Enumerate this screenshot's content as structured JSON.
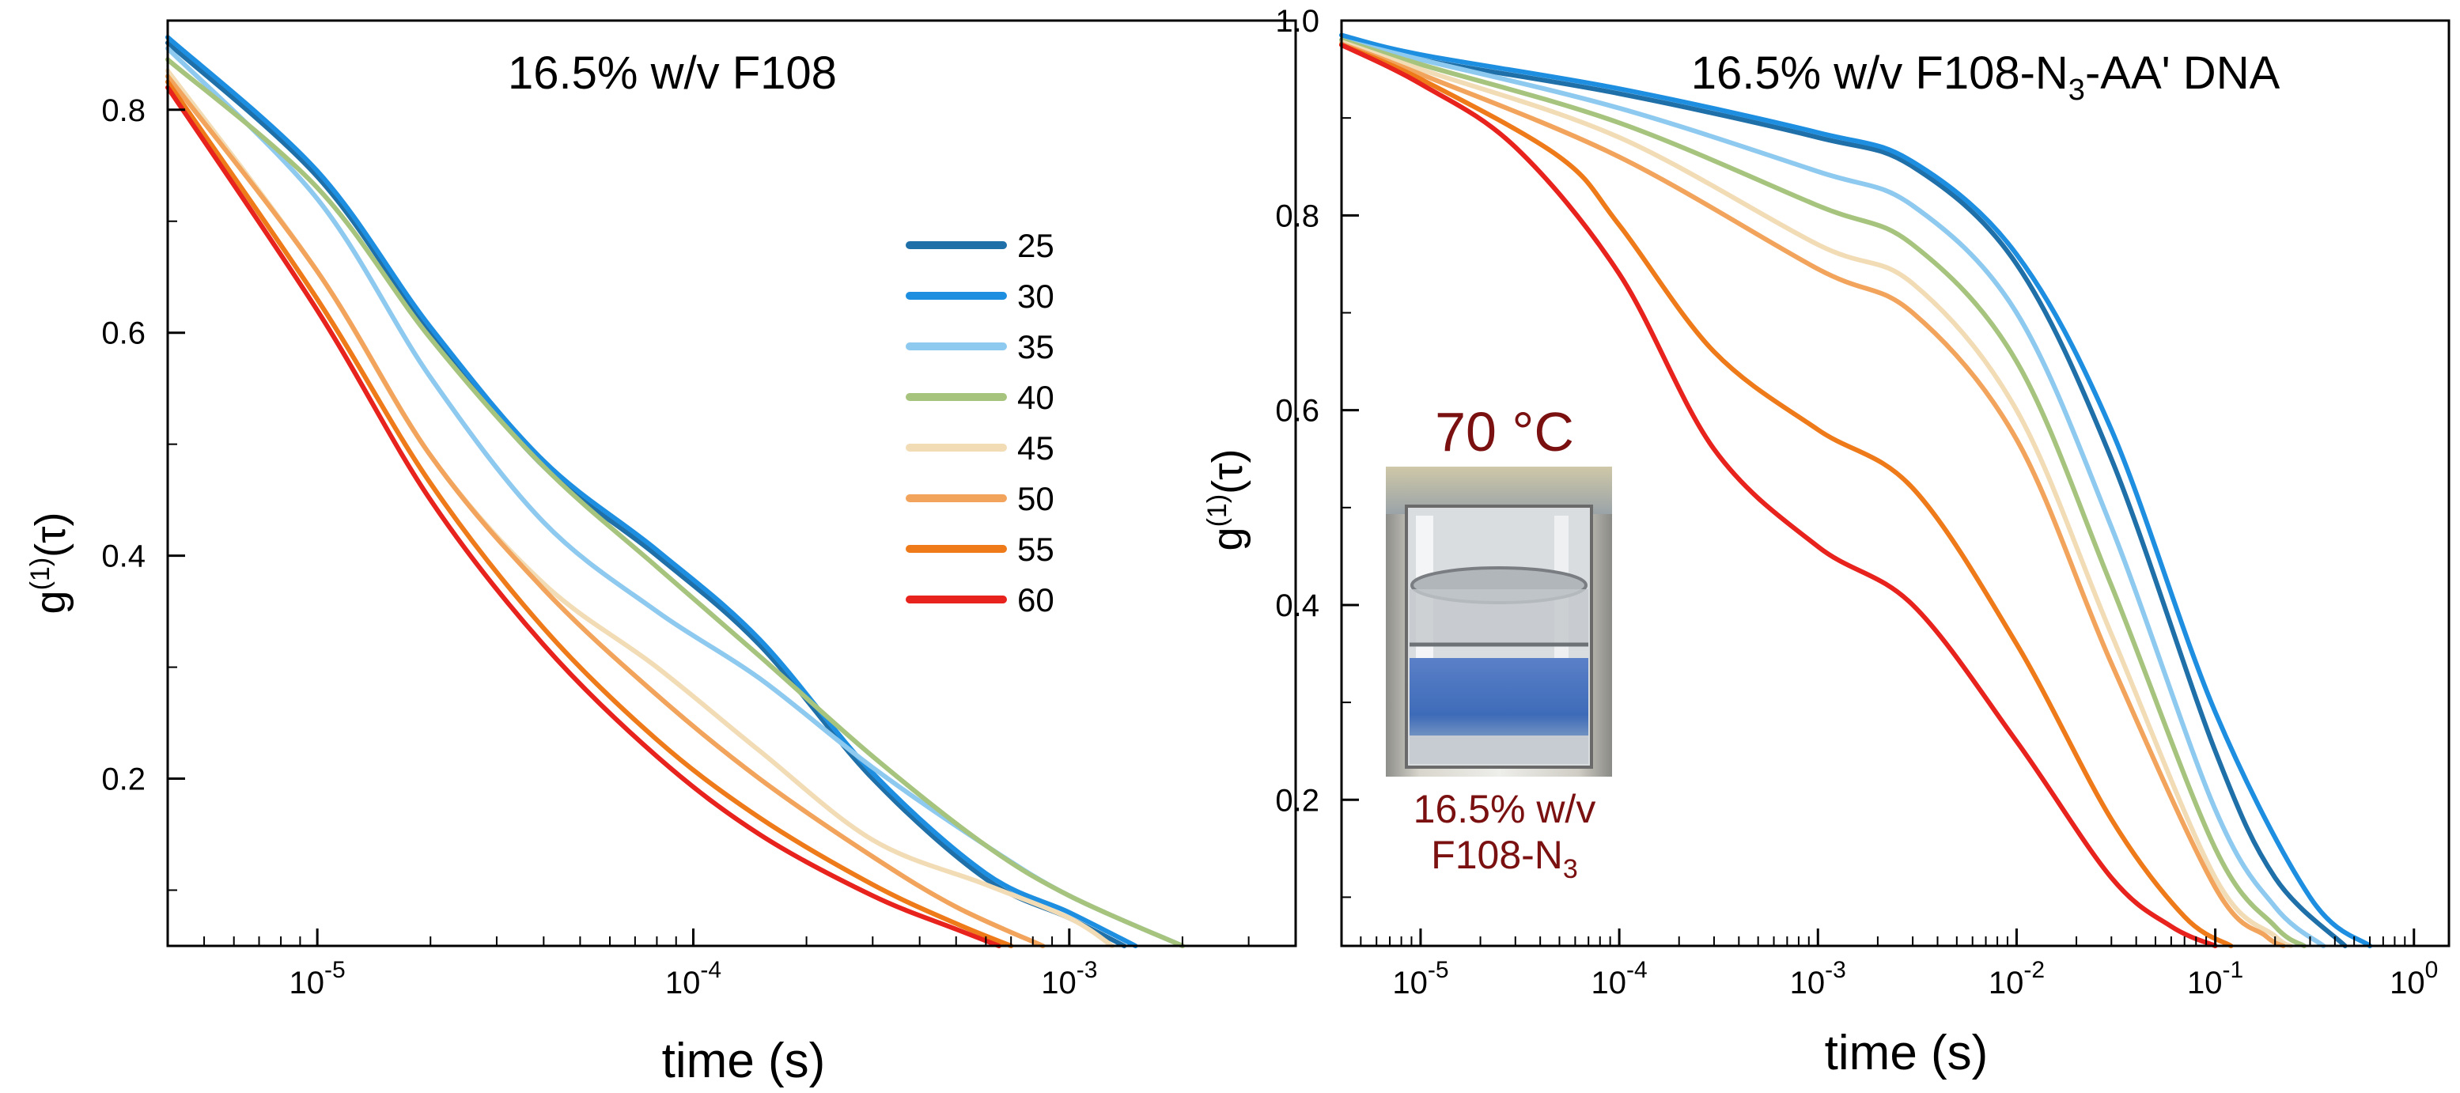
{
  "colors": {
    "25": "#1f6fa8",
    "30": "#1e8fe0",
    "35": "#8ec9ef",
    "40": "#a6c47e",
    "45": "#f2dcb6",
    "50": "#f2a45c",
    "55": "#ee7a1a",
    "60": "#e8221c",
    "45_left_tail": "#b3b3b3",
    "inset_text": "#7a1010"
  },
  "chart_data": [
    {
      "type": "line",
      "title": "16.5% w/v F108",
      "xlabel": "time (s)",
      "ylabel_main": "g",
      "ylabel_super": "(1)",
      "ylabel_arg": "(τ)",
      "xscale": "log",
      "xlim": [
        4e-06,
        0.004
      ],
      "ylim": [
        0.05,
        0.88
      ],
      "x_tick_labels": [
        {
          "base": "10",
          "exp": "-5",
          "value": 1e-05
        },
        {
          "base": "10",
          "exp": "-4",
          "value": 0.0001
        },
        {
          "base": "10",
          "exp": "-3",
          "value": 0.001
        }
      ],
      "y_ticks": [
        {
          "label": "0.2",
          "value": 0.2
        },
        {
          "label": "0.4",
          "value": 0.4
        },
        {
          "label": "0.6",
          "value": 0.6
        },
        {
          "label": "0.8",
          "value": 0.8
        }
      ],
      "legend": {
        "placement": "center-right",
        "entries": [
          {
            "label": "25",
            "key": "25"
          },
          {
            "label": "30",
            "key": "30"
          },
          {
            "label": "35",
            "key": "35"
          },
          {
            "label": "40",
            "key": "40"
          },
          {
            "label": "45",
            "key": "45"
          },
          {
            "label": "50",
            "key": "50"
          },
          {
            "label": "55",
            "key": "55"
          },
          {
            "label": "60",
            "key": "60"
          }
        ]
      },
      "series": [
        {
          "name": "25",
          "key": "25",
          "points": [
            [
              4e-06,
              0.86
            ],
            [
              1e-05,
              0.74
            ],
            [
              2e-05,
              0.6
            ],
            [
              4e-05,
              0.48
            ],
            [
              8e-05,
              0.4
            ],
            [
              0.00015,
              0.32
            ],
            [
              0.0003,
              0.2
            ],
            [
              0.0006,
              0.11
            ],
            [
              0.001,
              0.075
            ],
            [
              0.0014,
              0.05
            ]
          ]
        },
        {
          "name": "30",
          "key": "30",
          "points": [
            [
              4e-06,
              0.865
            ],
            [
              1e-05,
              0.745
            ],
            [
              2e-05,
              0.605
            ],
            [
              4e-05,
              0.485
            ],
            [
              8e-05,
              0.405
            ],
            [
              0.00015,
              0.325
            ],
            [
              0.0003,
              0.205
            ],
            [
              0.0006,
              0.115
            ],
            [
              0.001,
              0.08
            ],
            [
              0.0015,
              0.05
            ]
          ]
        },
        {
          "name": "35",
          "key": "35",
          "points": [
            [
              4e-06,
              0.855
            ],
            [
              1e-05,
              0.72
            ],
            [
              2e-05,
              0.56
            ],
            [
              4e-05,
              0.43
            ],
            [
              8e-05,
              0.35
            ],
            [
              0.00015,
              0.29
            ],
            [
              0.0003,
              0.21
            ],
            [
              0.0006,
              0.14
            ],
            [
              0.001,
              0.095
            ],
            [
              0.002,
              0.05
            ]
          ]
        },
        {
          "name": "40",
          "key": "40",
          "points": [
            [
              4e-06,
              0.845
            ],
            [
              1e-05,
              0.73
            ],
            [
              2e-05,
              0.595
            ],
            [
              4e-05,
              0.48
            ],
            [
              8e-05,
              0.39
            ],
            [
              0.00015,
              0.31
            ],
            [
              0.0003,
              0.22
            ],
            [
              0.0006,
              0.14
            ],
            [
              0.001,
              0.095
            ],
            [
              0.002,
              0.05
            ]
          ]
        },
        {
          "name": "45",
          "key": "45",
          "points": [
            [
              4e-06,
              0.835
            ],
            [
              1e-05,
              0.655
            ],
            [
              2e-05,
              0.49
            ],
            [
              4e-05,
              0.375
            ],
            [
              8e-05,
              0.3
            ],
            [
              0.00015,
              0.225
            ],
            [
              0.0003,
              0.145
            ],
            [
              0.0006,
              0.105
            ],
            [
              0.001,
              0.075
            ],
            [
              0.0013,
              0.05
            ]
          ]
        },
        {
          "name": "50",
          "key": "50",
          "points": [
            [
              4e-06,
              0.83
            ],
            [
              1e-05,
              0.655
            ],
            [
              2e-05,
              0.49
            ],
            [
              4e-05,
              0.37
            ],
            [
              8e-05,
              0.275
            ],
            [
              0.00015,
              0.2
            ],
            [
              0.0003,
              0.13
            ],
            [
              0.0005,
              0.085
            ],
            [
              0.00085,
              0.05
            ]
          ]
        },
        {
          "name": "55",
          "key": "55",
          "points": [
            [
              4e-06,
              0.825
            ],
            [
              1e-05,
              0.63
            ],
            [
              2e-05,
              0.465
            ],
            [
              4e-05,
              0.335
            ],
            [
              8e-05,
              0.235
            ],
            [
              0.00015,
              0.165
            ],
            [
              0.0003,
              0.105
            ],
            [
              0.0005,
              0.07
            ],
            [
              0.0007,
              0.05
            ]
          ]
        },
        {
          "name": "60",
          "key": "60",
          "points": [
            [
              4e-06,
              0.82
            ],
            [
              1e-05,
              0.62
            ],
            [
              2e-05,
              0.45
            ],
            [
              4e-05,
              0.32
            ],
            [
              8e-05,
              0.22
            ],
            [
              0.00015,
              0.15
            ],
            [
              0.0003,
              0.095
            ],
            [
              0.0005,
              0.065
            ],
            [
              0.00065,
              0.05
            ]
          ]
        }
      ]
    },
    {
      "type": "line",
      "title_prefix": "16.5% w/v F108-N",
      "title_sub": "3",
      "title_suffix": "-AA' DNA",
      "xlabel": "time (s)",
      "ylabel_main": "g",
      "ylabel_super": "(1)",
      "ylabel_arg": "(τ)",
      "xscale": "log",
      "xlim": [
        4e-06,
        1.5
      ],
      "ylim": [
        0.05,
        1.0
      ],
      "x_tick_labels": [
        {
          "base": "10",
          "exp": "-5",
          "value": 1e-05
        },
        {
          "base": "10",
          "exp": "-4",
          "value": 0.0001
        },
        {
          "base": "10",
          "exp": "-3",
          "value": 0.001
        },
        {
          "base": "10",
          "exp": "-2",
          "value": 0.01
        },
        {
          "base": "10",
          "exp": "-1",
          "value": 0.1
        },
        {
          "base": "10",
          "exp": "0",
          "value": 1
        }
      ],
      "y_ticks": [
        {
          "label": "0.2",
          "value": 0.2
        },
        {
          "label": "0.4",
          "value": 0.4
        },
        {
          "label": "0.6",
          "value": 0.6
        },
        {
          "label": "0.8",
          "value": 0.8
        },
        {
          "label": "1.0",
          "value": 1.0
        }
      ],
      "inset": {
        "title": "70 °C",
        "caption_line1": "16.5% w/v",
        "caption_line2_prefix": "F108-N",
        "caption_line2_sub": "3"
      },
      "series": [
        {
          "name": "25",
          "key": "25",
          "points": [
            [
              4e-06,
              0.98
            ],
            [
              1e-05,
              0.96
            ],
            [
              0.0001,
              0.925
            ],
            [
              0.001,
              0.88
            ],
            [
              0.003,
              0.85
            ],
            [
              0.01,
              0.75
            ],
            [
              0.03,
              0.55
            ],
            [
              0.1,
              0.25
            ],
            [
              0.2,
              0.12
            ],
            [
              0.45,
              0.05
            ]
          ]
        },
        {
          "name": "30",
          "key": "30",
          "points": [
            [
              4e-06,
              0.985
            ],
            [
              1e-05,
              0.965
            ],
            [
              0.0001,
              0.93
            ],
            [
              0.001,
              0.885
            ],
            [
              0.003,
              0.855
            ],
            [
              0.01,
              0.76
            ],
            [
              0.03,
              0.58
            ],
            [
              0.1,
              0.29
            ],
            [
              0.3,
              0.1
            ],
            [
              0.6,
              0.05
            ]
          ]
        },
        {
          "name": "35",
          "key": "35",
          "points": [
            [
              4e-06,
              0.98
            ],
            [
              1e-05,
              0.96
            ],
            [
              0.0001,
              0.91
            ],
            [
              0.001,
              0.845
            ],
            [
              0.003,
              0.81
            ],
            [
              0.01,
              0.7
            ],
            [
              0.03,
              0.48
            ],
            [
              0.1,
              0.19
            ],
            [
              0.2,
              0.09
            ],
            [
              0.35,
              0.05
            ]
          ]
        },
        {
          "name": "40",
          "key": "40",
          "points": [
            [
              4e-06,
              0.98
            ],
            [
              1e-05,
              0.955
            ],
            [
              0.0001,
              0.895
            ],
            [
              0.001,
              0.81
            ],
            [
              0.003,
              0.77
            ],
            [
              0.01,
              0.65
            ],
            [
              0.03,
              0.42
            ],
            [
              0.1,
              0.15
            ],
            [
              0.2,
              0.07
            ],
            [
              0.28,
              0.05
            ]
          ]
        },
        {
          "name": "45",
          "key": "45",
          "points": [
            [
              4e-06,
              0.978
            ],
            [
              1e-05,
              0.95
            ],
            [
              0.0001,
              0.88
            ],
            [
              0.001,
              0.77
            ],
            [
              0.003,
              0.73
            ],
            [
              0.01,
              0.6
            ],
            [
              0.03,
              0.37
            ],
            [
              0.1,
              0.12
            ],
            [
              0.2,
              0.06
            ],
            [
              0.24,
              0.05
            ]
          ]
        },
        {
          "name": "50",
          "key": "50",
          "points": [
            [
              4e-06,
              0.976
            ],
            [
              1e-05,
              0.945
            ],
            [
              0.0001,
              0.86
            ],
            [
              0.001,
              0.745
            ],
            [
              0.003,
              0.7
            ],
            [
              0.01,
              0.57
            ],
            [
              0.03,
              0.34
            ],
            [
              0.1,
              0.11
            ],
            [
              0.18,
              0.06
            ],
            [
              0.22,
              0.05
            ]
          ]
        },
        {
          "name": "55",
          "key": "55",
          "points": [
            [
              4e-06,
              0.975
            ],
            [
              1e-05,
              0.94
            ],
            [
              5e-05,
              0.86
            ],
            [
              0.0001,
              0.79
            ],
            [
              0.0003,
              0.66
            ],
            [
              0.001,
              0.58
            ],
            [
              0.003,
              0.52
            ],
            [
              0.01,
              0.36
            ],
            [
              0.03,
              0.18
            ],
            [
              0.07,
              0.08
            ],
            [
              0.12,
              0.05
            ]
          ]
        },
        {
          "name": "60",
          "key": "60",
          "points": [
            [
              4e-06,
              0.975
            ],
            [
              1e-05,
              0.935
            ],
            [
              3e-05,
              0.87
            ],
            [
              0.0001,
              0.74
            ],
            [
              0.0003,
              0.56
            ],
            [
              0.001,
              0.46
            ],
            [
              0.003,
              0.4
            ],
            [
              0.01,
              0.26
            ],
            [
              0.03,
              0.12
            ],
            [
              0.06,
              0.07
            ],
            [
              0.1,
              0.05
            ]
          ]
        }
      ]
    }
  ]
}
